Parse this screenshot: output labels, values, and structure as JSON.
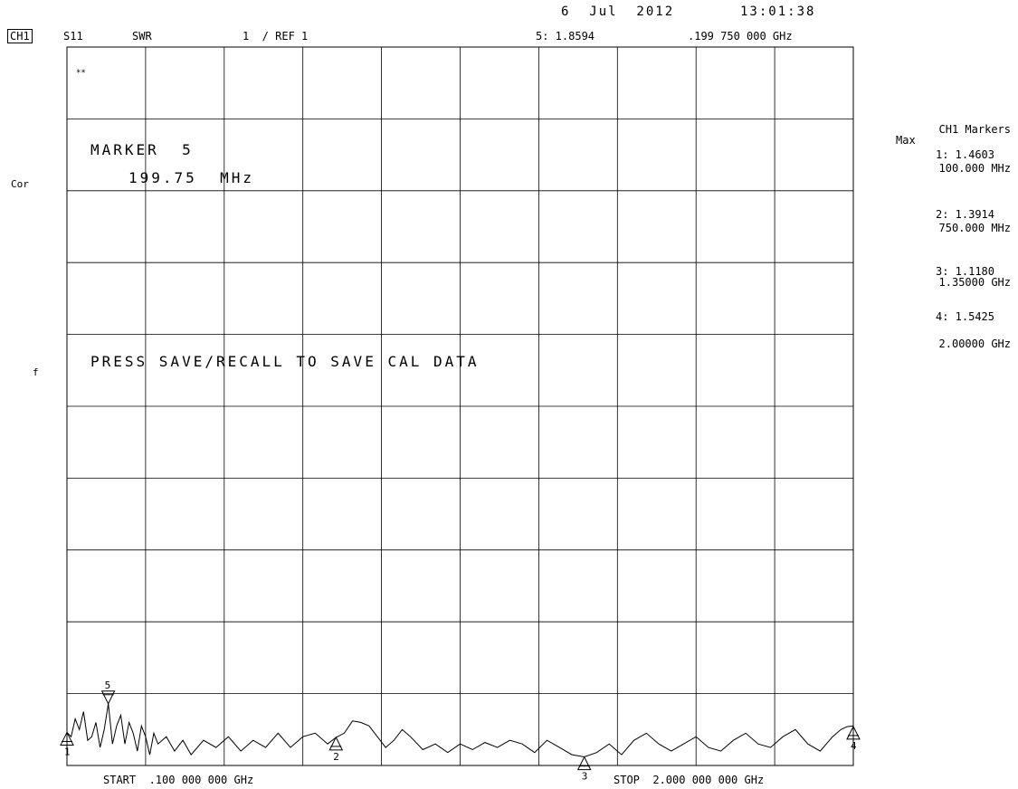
{
  "header": {
    "date": "6  Jul  2012",
    "time": "13:01:38",
    "channel": "CH1",
    "param": "S11",
    "format": "SWR",
    "scale": "1  / REF 1",
    "active_marker": "5: 1.8594",
    "active_freq": ".199 750 000 GHz"
  },
  "left_labels": {
    "cor": "Cor",
    "f": "f"
  },
  "corner_symbol": "**",
  "marker_box": {
    "title": "MARKER  5",
    "value": "199.75  MHz"
  },
  "message": "PRESS SAVE/RECALL TO SAVE CAL DATA",
  "footer": {
    "start": "START  .100 000 000 GHz",
    "stop": "STOP  2.000 000 000 GHz"
  },
  "marker_list": {
    "title": "CH1 Markers",
    "sub": "Max",
    "items": [
      {
        "value": "1: 1.4603",
        "freq": "100.000 MHz"
      },
      {
        "value": "2: 1.3914",
        "freq": "750.000 MHz"
      },
      {
        "value": "3: 1.1180",
        "freq": "1.35000 GHz"
      },
      {
        "value": "4: 1.5425",
        "freq": "2.00000 GHz"
      }
    ]
  },
  "chart_data": {
    "type": "line",
    "x_unit": "GHz",
    "xlim": [
      0.1,
      2.0
    ],
    "ylim": [
      1.0,
      11.0
    ],
    "grid": true,
    "series": [
      {
        "x": [
          0.1,
          0.11,
          0.12,
          0.13,
          0.14,
          0.15,
          0.16,
          0.17,
          0.18,
          0.19,
          0.2,
          0.21,
          0.22,
          0.23,
          0.24,
          0.25,
          0.26,
          0.27,
          0.28,
          0.29,
          0.3,
          0.31,
          0.32,
          0.34,
          0.36,
          0.38,
          0.4,
          0.43,
          0.46,
          0.49,
          0.52,
          0.55,
          0.58,
          0.61,
          0.64,
          0.67,
          0.7,
          0.73,
          0.75,
          0.77,
          0.79,
          0.81,
          0.83,
          0.85,
          0.87,
          0.89,
          0.91,
          0.93,
          0.96,
          0.99,
          1.02,
          1.05,
          1.08,
          1.11,
          1.14,
          1.17,
          1.2,
          1.23,
          1.26,
          1.29,
          1.32,
          1.35,
          1.38,
          1.41,
          1.44,
          1.47,
          1.5,
          1.53,
          1.56,
          1.59,
          1.62,
          1.65,
          1.68,
          1.71,
          1.74,
          1.77,
          1.8,
          1.83,
          1.86,
          1.89,
          1.92,
          1.95,
          1.97,
          1.985,
          2.0
        ],
        "y": [
          1.46,
          1.4,
          1.65,
          1.5,
          1.75,
          1.35,
          1.4,
          1.6,
          1.25,
          1.5,
          1.86,
          1.3,
          1.55,
          1.7,
          1.3,
          1.6,
          1.45,
          1.2,
          1.55,
          1.4,
          1.15,
          1.45,
          1.3,
          1.4,
          1.2,
          1.35,
          1.15,
          1.35,
          1.25,
          1.4,
          1.2,
          1.35,
          1.25,
          1.45,
          1.25,
          1.4,
          1.45,
          1.3,
          1.39,
          1.45,
          1.62,
          1.6,
          1.55,
          1.4,
          1.25,
          1.35,
          1.5,
          1.4,
          1.22,
          1.3,
          1.18,
          1.3,
          1.22,
          1.32,
          1.25,
          1.35,
          1.3,
          1.18,
          1.35,
          1.25,
          1.15,
          1.12,
          1.18,
          1.3,
          1.15,
          1.35,
          1.45,
          1.3,
          1.2,
          1.3,
          1.4,
          1.25,
          1.2,
          1.35,
          1.45,
          1.3,
          1.25,
          1.4,
          1.5,
          1.3,
          1.2,
          1.4,
          1.5,
          1.54,
          1.55
        ]
      }
    ],
    "markers": [
      {
        "label": "1",
        "x": 0.1,
        "y": 1.4603,
        "pointer": "up"
      },
      {
        "label": "2",
        "x": 0.75,
        "y": 1.3914,
        "pointer": "up"
      },
      {
        "label": "3",
        "x": 1.35,
        "y": 1.118,
        "pointer": "up"
      },
      {
        "label": "4",
        "x": 2.0,
        "y": 1.5425,
        "pointer": "up"
      },
      {
        "label": "5",
        "x": 0.19975,
        "y": 1.8594,
        "pointer": "down"
      }
    ]
  }
}
